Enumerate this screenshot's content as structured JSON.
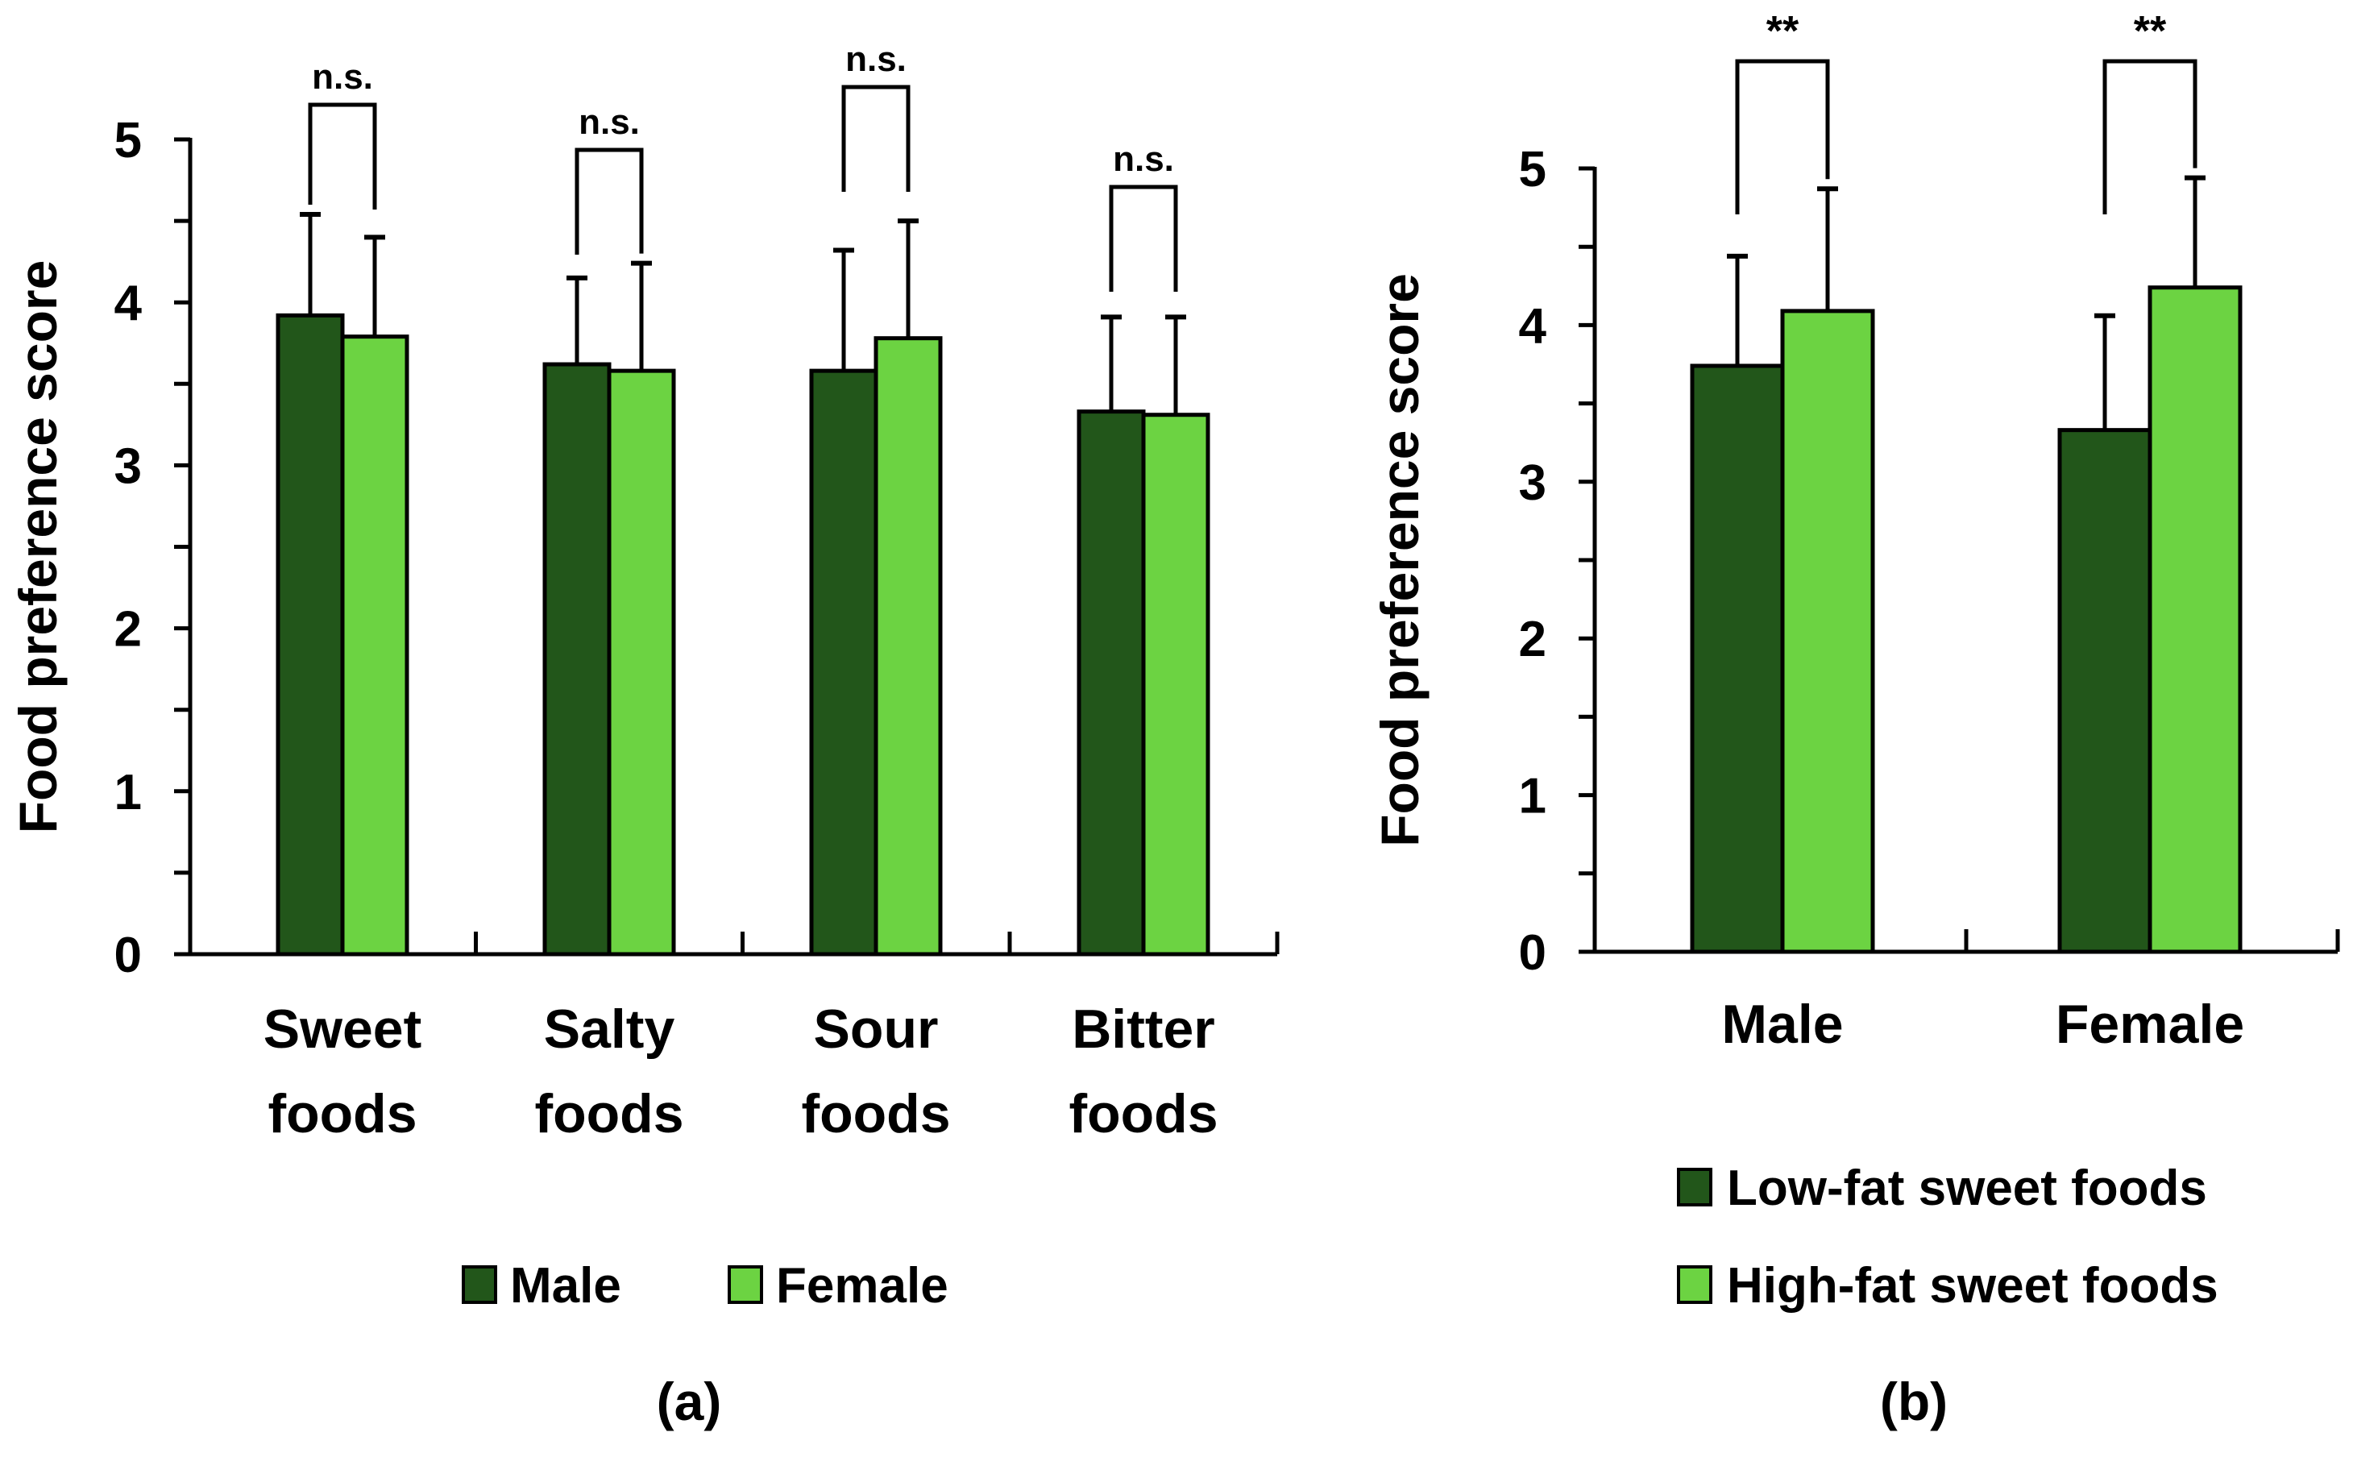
{
  "colors": {
    "dark": "#22561a",
    "light": "#6cd342"
  },
  "chart_data": [
    {
      "type": "bar",
      "panel_label": "(a)",
      "ylabel": "Food preference score",
      "ylim": [
        0,
        5
      ],
      "yticks": [
        "0",
        "1",
        "2",
        "3",
        "4",
        "5"
      ],
      "categories": [
        [
          "Sweet",
          "foods"
        ],
        [
          "Salty",
          "foods"
        ],
        [
          "Sour",
          "foods"
        ],
        [
          "Bitter",
          "foods"
        ]
      ],
      "series": [
        {
          "name": "Male",
          "color": "#22561a",
          "values": [
            3.92,
            3.62,
            3.58,
            3.33
          ],
          "error_upper": [
            4.54,
            4.15,
            4.32,
            3.91
          ]
        },
        {
          "name": "Female",
          "color": "#6cd342",
          "values": [
            3.79,
            3.58,
            3.78,
            3.31
          ],
          "error_upper": [
            4.4,
            4.24,
            4.5,
            3.91
          ]
        }
      ],
      "annotations": [
        "n.s.",
        "n.s.",
        "n.s.",
        "n.s."
      ],
      "legend": "bottom"
    },
    {
      "type": "bar",
      "panel_label": "(b)",
      "ylabel": "Food preference score",
      "ylim": [
        0,
        5
      ],
      "yticks": [
        "0",
        "1",
        "2",
        "3",
        "4",
        "5"
      ],
      "categories": [
        [
          "Male"
        ],
        [
          "Female"
        ]
      ],
      "series": [
        {
          "name": "Low-fat sweet foods",
          "color": "#22561a",
          "values": [
            3.74,
            3.33
          ],
          "error_upper": [
            4.44,
            4.06
          ]
        },
        {
          "name": "High-fat sweet foods",
          "color": "#6cd342",
          "values": [
            4.09,
            4.24
          ],
          "error_upper": [
            4.87,
            4.94
          ]
        }
      ],
      "annotations": [
        "**",
        "**"
      ],
      "legend": "bottom"
    }
  ]
}
